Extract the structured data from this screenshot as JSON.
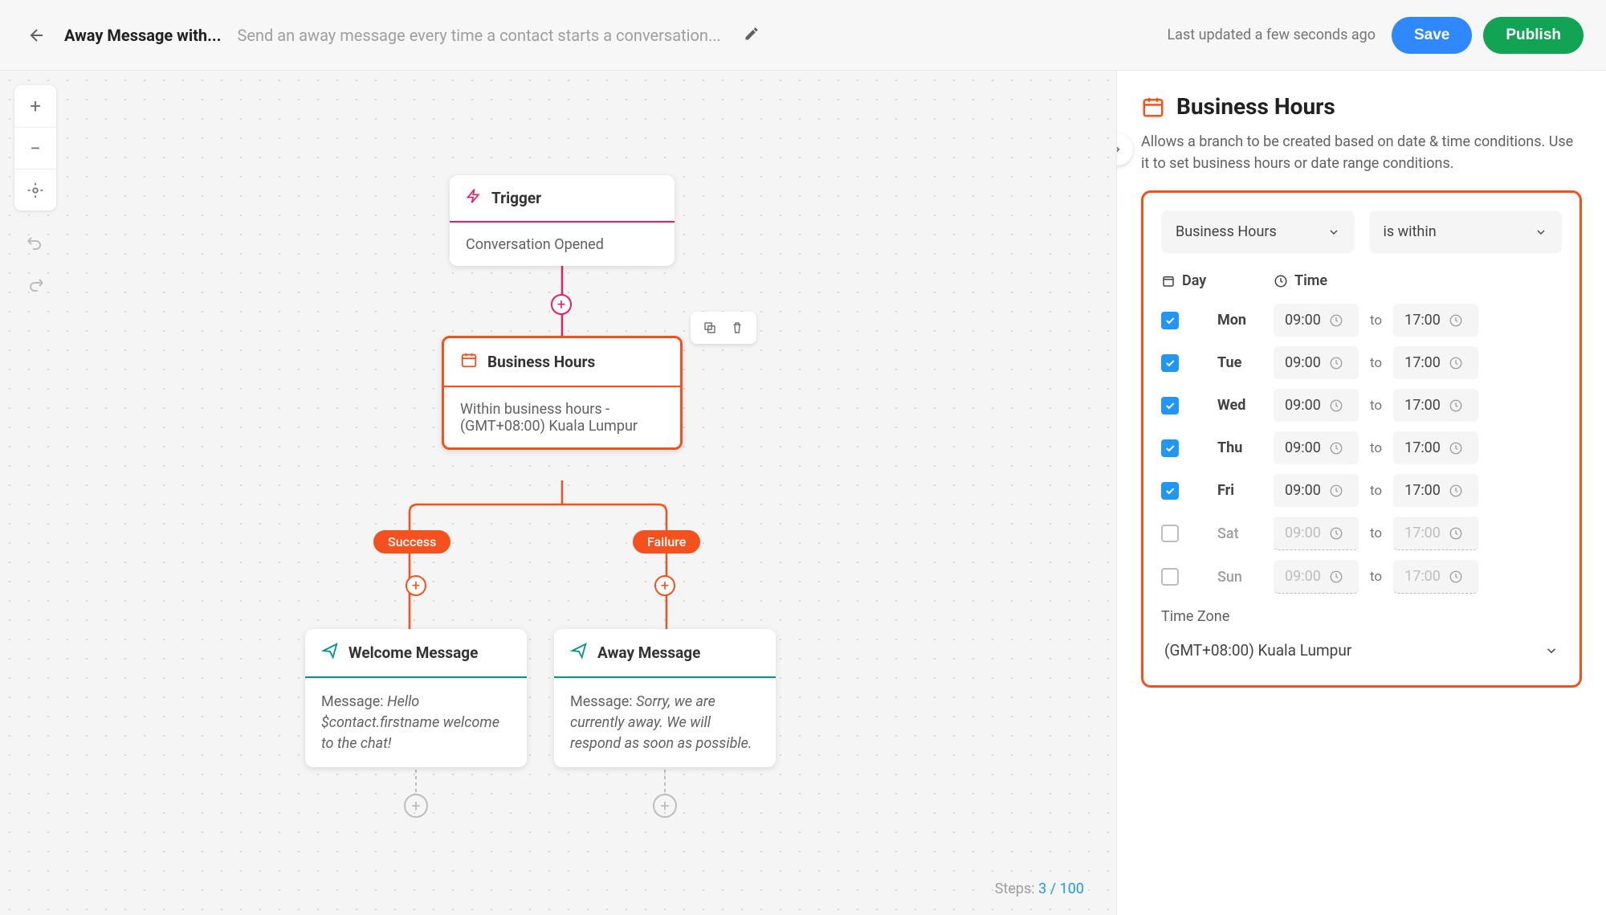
{
  "header": {
    "title": "Away Message with...",
    "subtitle": "Send an away message every time a contact starts a conversation...",
    "lastUpdated": "Last updated a few seconds ago",
    "saveLabel": "Save",
    "publishLabel": "Publish"
  },
  "footer": {
    "stepsLabel": "Steps:",
    "stepsCurrent": "3",
    "stepsSep": "/",
    "stepsMax": "100"
  },
  "nodes": {
    "trigger": {
      "title": "Trigger",
      "body": "Conversation Opened"
    },
    "businessHours": {
      "title": "Business Hours",
      "body": "Within business hours - (GMT+08:00) Kuala Lumpur"
    },
    "branches": {
      "success": "Success",
      "failure": "Failure"
    },
    "welcome": {
      "title": "Welcome Message",
      "prefix": "Message: ",
      "content": "Hello $contact.firstname welcome to the chat!"
    },
    "away": {
      "title": "Away Message",
      "prefix": "Message: ",
      "content": "Sorry, we are currently away. We will respond as soon as possible."
    }
  },
  "sidebar": {
    "title": "Business Hours",
    "description": "Allows a branch to be created based on date & time conditions. Use it to set business hours or date range conditions.",
    "conditionType": "Business Hours",
    "conditionOp": "is within",
    "dayLabel": "Day",
    "timeLabel": "Time",
    "toLabel": "to",
    "days": [
      {
        "label": "Mon",
        "checked": true,
        "from": "09:00",
        "to": "17:00"
      },
      {
        "label": "Tue",
        "checked": true,
        "from": "09:00",
        "to": "17:00"
      },
      {
        "label": "Wed",
        "checked": true,
        "from": "09:00",
        "to": "17:00"
      },
      {
        "label": "Thu",
        "checked": true,
        "from": "09:00",
        "to": "17:00"
      },
      {
        "label": "Fri",
        "checked": true,
        "from": "09:00",
        "to": "17:00"
      },
      {
        "label": "Sat",
        "checked": false,
        "from": "09:00",
        "to": "17:00"
      },
      {
        "label": "Sun",
        "checked": false,
        "from": "09:00",
        "to": "17:00"
      }
    ],
    "timezoneLabel": "Time Zone",
    "timezoneValue": "(GMT+08:00) Kuala Lumpur"
  },
  "colors": {
    "trigger": "#e91e63",
    "businessHours": "#f4511e",
    "message": "#009688",
    "primary": "#2f89fc",
    "success": "#12a454"
  }
}
